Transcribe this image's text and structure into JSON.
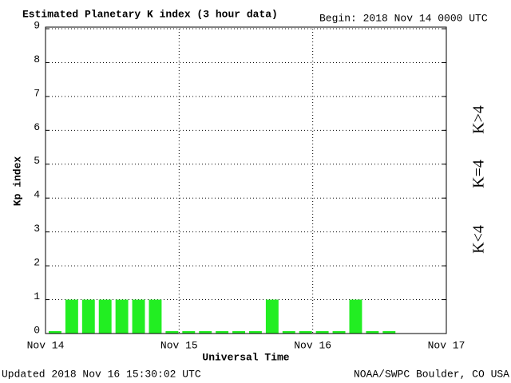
{
  "chart_data": {
    "type": "bar",
    "title": "Estimated Planetary K index (3 hour data)",
    "subtitle": "Begin:  2018 Nov 14 0000 UTC",
    "ylabel": "Kp index",
    "xlabel": "Universal Time",
    "footer_left": "Updated 2018 Nov 16 15:30:02 UTC",
    "footer_right": "NOAA/SWPC Boulder, CO USA",
    "x": [
      0,
      3,
      6,
      9,
      12,
      15,
      18,
      21,
      24,
      27,
      30,
      33,
      36,
      39,
      42,
      45,
      48,
      51,
      54,
      57,
      60
    ],
    "values": [
      0,
      1,
      1,
      1,
      1,
      1,
      1,
      0,
      0,
      0,
      0,
      0,
      0,
      1,
      0,
      0,
      0,
      0,
      1,
      0,
      0
    ],
    "color": "#22ee22",
    "xlim": [
      0,
      72
    ],
    "xticks": [
      {
        "value": 0,
        "label": "Nov 14"
      },
      {
        "value": 24,
        "label": "Nov 15"
      },
      {
        "value": 48,
        "label": "Nov 16"
      },
      {
        "value": 72,
        "label": "Nov 17"
      }
    ],
    "ylim": [
      0,
      9
    ],
    "yticks": [
      0,
      1,
      2,
      3,
      4,
      5,
      6,
      7,
      8,
      9
    ],
    "grid": true,
    "legend": [
      {
        "label": "K<4",
        "color": "#22dd22"
      },
      {
        "label": "K=4",
        "color": "#ffcc00"
      },
      {
        "label": "K>4",
        "color": "#ff3300"
      }
    ]
  }
}
